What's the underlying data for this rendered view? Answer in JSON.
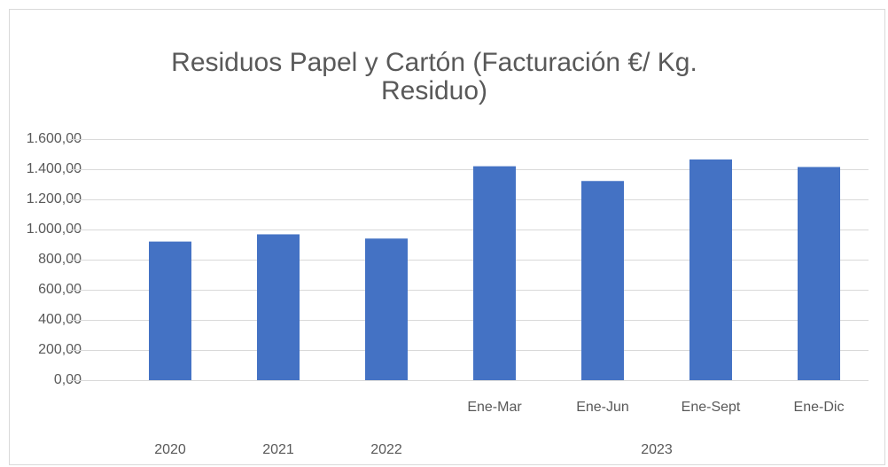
{
  "chart_data": {
    "type": "bar",
    "title": [
      "Residuos Papel y Cartón  (Facturación €/ Kg.",
      "Residuo)"
    ],
    "categories": [
      null,
      null,
      null,
      "Ene-Mar",
      "Ene-Jun",
      "Ene-Sept",
      "Ene-Dic"
    ],
    "groups": [
      {
        "label": "2020",
        "span": 1
      },
      {
        "label": "2021",
        "span": 1
      },
      {
        "label": "2022",
        "span": 1
      },
      {
        "label": "2023",
        "span": 4
      }
    ],
    "values": [
      920,
      968,
      940,
      1420,
      1322,
      1465,
      1415
    ],
    "color": "#4472c4",
    "ylim": [
      0,
      1600
    ],
    "yticks": [
      {
        "value": 0,
        "label": "0,00"
      },
      {
        "value": 200,
        "label": "200,00"
      },
      {
        "value": 400,
        "label": "400,00"
      },
      {
        "value": 600,
        "label": "600,00"
      },
      {
        "value": 800,
        "label": "800,00"
      },
      {
        "value": 1000,
        "label": "1.000,00"
      },
      {
        "value": 1200,
        "label": "1.200,00"
      },
      {
        "value": 1400,
        "label": "1.400,00"
      },
      {
        "value": 1600,
        "label": "1.600,00"
      }
    ],
    "grid": true
  }
}
